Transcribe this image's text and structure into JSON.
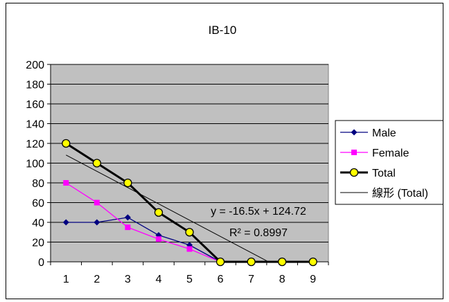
{
  "chart_data": {
    "type": "line",
    "title": "IB-10",
    "x": [
      1,
      2,
      3,
      4,
      5,
      6,
      7,
      8,
      9
    ],
    "ylim": [
      0,
      200
    ],
    "yticks": [
      0,
      20,
      40,
      60,
      80,
      100,
      120,
      140,
      160,
      180,
      200
    ],
    "grid": "horizontal",
    "legend_position": "right",
    "series": [
      {
        "name": "Male",
        "marker": "diamond",
        "color": "#000080",
        "x": [
          1,
          2,
          3,
          4,
          5,
          6
        ],
        "values": [
          40,
          40,
          45,
          27,
          17,
          0
        ]
      },
      {
        "name": "Female",
        "marker": "square",
        "color": "#ff00ff",
        "x": [
          1,
          2,
          3,
          4,
          5,
          6
        ],
        "values": [
          80,
          60,
          35,
          23,
          13,
          0
        ]
      },
      {
        "name": "Total",
        "marker": "circle",
        "color": "#000000",
        "marker_fill": "#ffff00",
        "x": [
          1,
          2,
          3,
          4,
          5,
          6,
          7,
          8,
          9
        ],
        "values": [
          120,
          100,
          80,
          50,
          30,
          0,
          0,
          0,
          0
        ]
      }
    ],
    "trendline": {
      "name": "線形 (Total)",
      "of": "Total",
      "slope": -16.5,
      "intercept": 124.72,
      "x_range": [
        1,
        7.56
      ],
      "equation_label": "y = -16.5x + 124.72",
      "r2_label": "R² = 0.8997"
    },
    "plot_background": "#c0c0c0"
  }
}
